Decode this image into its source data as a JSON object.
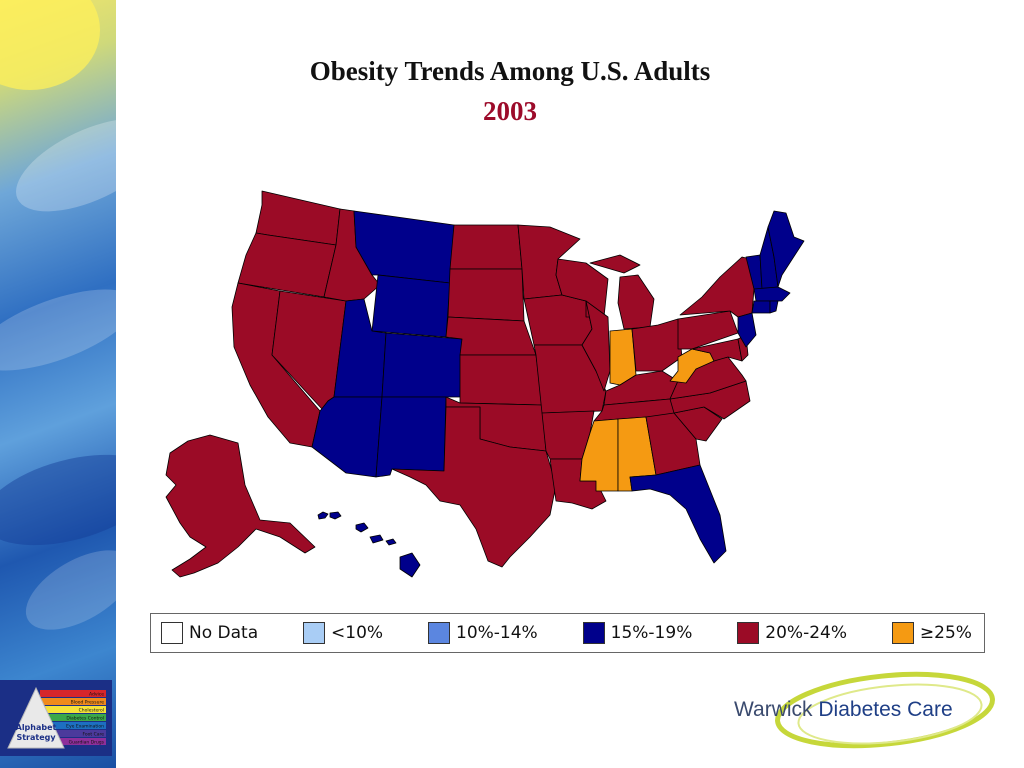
{
  "title": "Obesity Trends Among U.S. Adults",
  "year": "2003",
  "legend": [
    {
      "label": "No Data",
      "color": "#ffffff"
    },
    {
      "label": "<10%",
      "color": "#a9cdf5"
    },
    {
      "label": "10%-14%",
      "color": "#5b86e0"
    },
    {
      "label": "15%-19%",
      "color": "#00008b"
    },
    {
      "label": "20%-24%",
      "color": "#9b0b26"
    },
    {
      "label": "≥25%",
      "color": "#f59a12"
    }
  ],
  "highlighted_categories": {
    "15%-19%": [
      "Montana",
      "Wyoming",
      "Utah",
      "Colorado",
      "Arizona",
      "New Mexico",
      "Florida",
      "Hawaii",
      "Vermont",
      "New Hampshire",
      "Maine",
      "Massachusetts",
      "Connecticut",
      "Rhode Island",
      "New Jersey"
    ],
    "≥25%": [
      "Indiana",
      "West Virginia",
      "Mississippi",
      "Alabama"
    ]
  },
  "default_category": "20%-24%",
  "logo": {
    "name": "Alphabet Strategy",
    "bands": [
      "Advice",
      "Blood Pressure",
      "Cholesterol",
      "Diabetes Control",
      "Eye Examination",
      "Foot Care",
      "Guardian Drugs"
    ]
  },
  "brand": {
    "word1": "Warwick",
    "word2": "Diabetes Care"
  }
}
